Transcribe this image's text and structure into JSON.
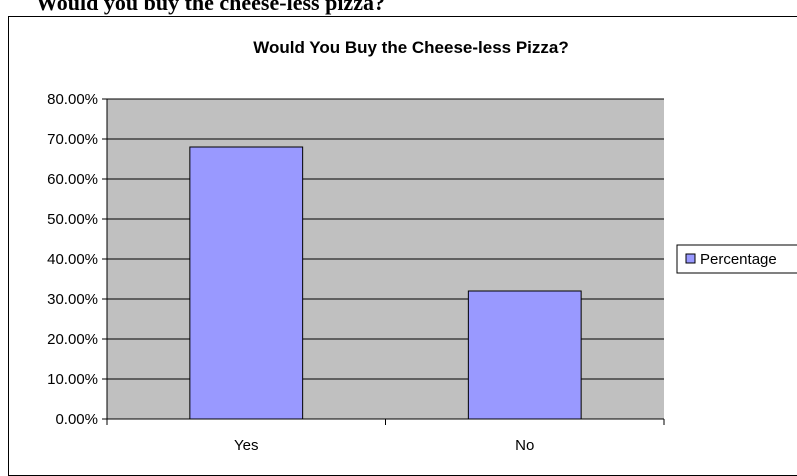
{
  "page": {
    "heading": "Would you buy the cheese-less pizza?"
  },
  "chart_data": {
    "type": "bar",
    "title": "Would You Buy the Cheese-less Pizza?",
    "categories": [
      "Yes",
      "No"
    ],
    "series": [
      {
        "name": "Percentage",
        "values": [
          0.68,
          0.32
        ]
      }
    ],
    "y_tick_labels": [
      "0.00%",
      "10.00%",
      "20.00%",
      "30.00%",
      "40.00%",
      "50.00%",
      "60.00%",
      "70.00%",
      "80.00%"
    ],
    "ylim": [
      0,
      0.8
    ],
    "y_format": "percent",
    "grid": true,
    "legend": "right",
    "colors": {
      "bar_fill": "#9999FF",
      "plot_background": "#C0C0C0",
      "gridline": "#000000"
    }
  }
}
